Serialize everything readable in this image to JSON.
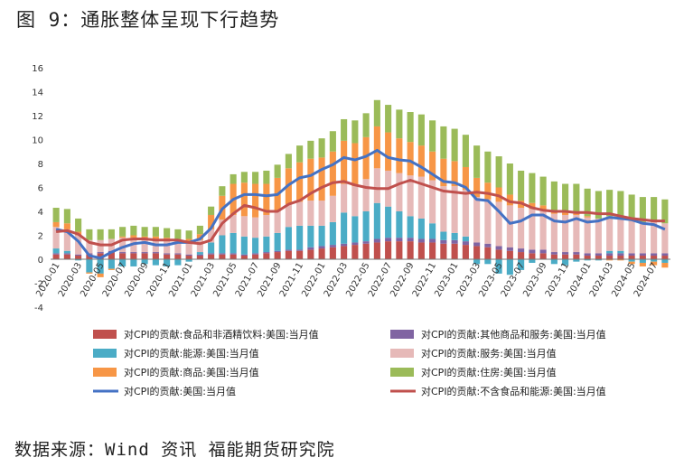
{
  "figure_title": "图 9：通胀整体呈现下行趋势",
  "source": "数据来源：Wind 资讯 福能期货研究院",
  "chart_data": {
    "type": "bar",
    "stacked": true,
    "title": "",
    "xlabel": "",
    "ylabel": "",
    "ylim": [
      -4,
      16
    ],
    "yticks": [
      -4,
      -2,
      0,
      2,
      4,
      6,
      8,
      10,
      12,
      14,
      16
    ],
    "grid": false,
    "legend_position": "bottom",
    "x": [
      "2020-01",
      "2020-02",
      "2020-03",
      "2020-04",
      "2020-05",
      "2020-06",
      "2020-07",
      "2020-08",
      "2020-09",
      "2020-10",
      "2020-11",
      "2020-12",
      "2021-01",
      "2021-02",
      "2021-03",
      "2021-04",
      "2021-05",
      "2021-06",
      "2021-07",
      "2021-08",
      "2021-09",
      "2021-10",
      "2021-11",
      "2021-12",
      "2022-01",
      "2022-02",
      "2022-03",
      "2022-04",
      "2022-05",
      "2022-06",
      "2022-07",
      "2022-08",
      "2022-09",
      "2022-10",
      "2022-11",
      "2022-12",
      "2023-01",
      "2023-02",
      "2023-03",
      "2023-04",
      "2023-05",
      "2023-06",
      "2023-07",
      "2023-08",
      "2023-09",
      "2023-10",
      "2023-11",
      "2023-12",
      "2024-01",
      "2024-02",
      "2024-03",
      "2024-04",
      "2024-05",
      "2024-06",
      "2024-07",
      "2024-08"
    ],
    "x_tick_labels": [
      "2020-01",
      "2020-03",
      "2020-05",
      "2020-07",
      "2020-09",
      "2020-11",
      "2021-01",
      "2021-03",
      "2021-05",
      "2021-07",
      "2021-09",
      "2021-11",
      "2022-01",
      "2022-03",
      "2022-05",
      "2022-07",
      "2022-09",
      "2022-11",
      "2023-01",
      "2023-03",
      "2023-05",
      "2023-07",
      "2023-09",
      "2023-11",
      "2024-01",
      "2024-03",
      "2024-05",
      "2024-07"
    ],
    "bar_series": [
      {
        "name": "对CPI的贡献:食品和非酒精饮料:美国:当月值",
        "color": "#C0504D",
        "values": [
          0.4,
          0.4,
          0.3,
          0.4,
          0.5,
          0.6,
          0.5,
          0.5,
          0.5,
          0.5,
          0.4,
          0.4,
          0.3,
          0.3,
          0.4,
          0.4,
          0.4,
          0.3,
          0.4,
          0.5,
          0.6,
          0.7,
          0.7,
          0.8,
          0.9,
          1.0,
          1.1,
          1.2,
          1.3,
          1.4,
          1.5,
          1.5,
          1.5,
          1.4,
          1.4,
          1.3,
          1.3,
          1.2,
          1.1,
          1.0,
          0.8,
          0.7,
          0.6,
          0.5,
          0.5,
          0.4,
          0.4,
          0.4,
          0.3,
          0.3,
          0.3,
          0.3,
          0.3,
          0.3,
          0.3,
          0.3
        ]
      },
      {
        "name": "对CPI的贡献:其他商品和服务:美国:当月值",
        "color": "#8064A2",
        "values": [
          0.1,
          0.1,
          0.1,
          0.1,
          0.1,
          0.1,
          0.1,
          0.1,
          0.1,
          0.1,
          0.1,
          0.1,
          0.1,
          0.1,
          0.1,
          0.1,
          0.1,
          0.1,
          0.1,
          0.1,
          0.1,
          0.1,
          0.1,
          0.2,
          0.2,
          0.2,
          0.2,
          0.2,
          0.2,
          0.3,
          0.3,
          0.3,
          0.3,
          0.3,
          0.3,
          0.3,
          0.3,
          0.3,
          0.3,
          0.3,
          0.3,
          0.3,
          0.3,
          0.3,
          0.3,
          0.2,
          0.2,
          0.2,
          0.2,
          0.2,
          0.2,
          0.2,
          0.2,
          0.2,
          0.2,
          0.2
        ]
      },
      {
        "name": "对CPI的贡献:能源:美国:当月值",
        "color": "#4BACC6",
        "values": [
          0.4,
          0.2,
          -0.1,
          -1.1,
          -1.2,
          -0.8,
          -0.6,
          -0.6,
          -0.4,
          -0.5,
          -0.6,
          -0.5,
          -0.2,
          0.2,
          0.9,
          1.5,
          1.7,
          1.5,
          1.3,
          1.3,
          1.5,
          1.9,
          2.0,
          1.8,
          1.7,
          1.9,
          2.6,
          2.2,
          2.5,
          3.0,
          2.6,
          2.2,
          1.8,
          1.7,
          1.3,
          0.7,
          0.6,
          0.4,
          -0.4,
          -0.4,
          -1.2,
          -1.3,
          -0.9,
          -0.3,
          -0.0,
          -0.4,
          -0.5,
          -0.2,
          -0.1,
          -0.1,
          0.2,
          0.2,
          -0.2,
          -0.3,
          -0.2,
          -0.3
        ]
      },
      {
        "name": "对CPI的贡献:服务:美国:当月值",
        "color": "#E6B9B8",
        "values": [
          1.8,
          1.8,
          1.6,
          1.1,
          1.0,
          1.0,
          1.2,
          1.2,
          1.1,
          1.0,
          1.0,
          1.0,
          1.0,
          1.0,
          1.1,
          1.3,
          1.5,
          1.7,
          1.7,
          1.8,
          1.8,
          1.9,
          2.0,
          2.1,
          2.1,
          2.2,
          2.4,
          2.5,
          2.7,
          2.9,
          3.0,
          3.2,
          3.4,
          3.5,
          3.6,
          3.8,
          3.9,
          3.9,
          3.8,
          3.7,
          3.7,
          3.5,
          3.4,
          3.4,
          3.3,
          3.2,
          3.1,
          3.1,
          3.0,
          2.9,
          2.9,
          2.8,
          2.7,
          2.6,
          2.6,
          2.5
        ]
      },
      {
        "name": "对CPI的贡献:商品:美国:当月值",
        "color": "#F79646",
        "values": [
          0.4,
          0.5,
          0.3,
          -0.1,
          -0.3,
          -0.1,
          0.1,
          0.2,
          0.2,
          0.3,
          0.3,
          0.2,
          0.3,
          0.5,
          1.2,
          2.0,
          2.6,
          2.8,
          2.8,
          2.6,
          2.8,
          3.0,
          3.3,
          3.5,
          3.6,
          3.7,
          3.6,
          3.6,
          3.5,
          3.5,
          3.2,
          2.9,
          2.8,
          2.6,
          2.4,
          2.3,
          2.1,
          1.9,
          1.6,
          1.4,
          1.2,
          0.9,
          0.6,
          0.5,
          0.4,
          0.3,
          0.2,
          0.2,
          0.1,
          0.0,
          -0.1,
          -0.1,
          -0.2,
          -0.3,
          -0.3,
          -0.4
        ]
      },
      {
        "name": "对CPI的贡献:住房:美国:当月值",
        "color": "#9BBB59",
        "values": [
          1.2,
          1.2,
          1.1,
          0.9,
          0.9,
          0.8,
          0.8,
          0.8,
          0.8,
          0.8,
          0.8,
          0.8,
          0.7,
          0.7,
          0.7,
          0.8,
          0.8,
          0.9,
          1.0,
          1.1,
          1.1,
          1.2,
          1.4,
          1.5,
          1.6,
          1.7,
          1.8,
          1.9,
          2.0,
          2.2,
          2.3,
          2.4,
          2.5,
          2.6,
          2.6,
          2.7,
          2.7,
          2.7,
          2.7,
          2.6,
          2.6,
          2.6,
          2.5,
          2.5,
          2.4,
          2.4,
          2.4,
          2.4,
          2.3,
          2.3,
          2.2,
          2.2,
          2.2,
          2.1,
          2.1,
          2.0
        ]
      }
    ],
    "line_series": [
      {
        "name": "对CPI的贡献:美国:当月值",
        "color": "#4472C4",
        "values": [
          2.5,
          2.3,
          1.5,
          0.3,
          0.1,
          0.6,
          1.0,
          1.3,
          1.4,
          1.2,
          1.2,
          1.4,
          1.4,
          1.7,
          2.6,
          4.2,
          5.0,
          5.4,
          5.4,
          5.3,
          5.4,
          6.2,
          6.8,
          7.0,
          7.5,
          7.9,
          8.5,
          8.3,
          8.6,
          9.1,
          8.5,
          8.3,
          8.2,
          7.7,
          7.1,
          6.5,
          6.4,
          6.0,
          5.0,
          4.9,
          4.0,
          3.0,
          3.2,
          3.7,
          3.7,
          3.2,
          3.1,
          3.4,
          3.1,
          3.2,
          3.5,
          3.4,
          3.3,
          3.0,
          2.9,
          2.5
        ]
      },
      {
        "name": "对CPI的贡献:不含食品和能源:美国:当月值",
        "color": "#C0504D",
        "values": [
          2.3,
          2.4,
          2.1,
          1.4,
          1.2,
          1.2,
          1.6,
          1.7,
          1.7,
          1.6,
          1.6,
          1.6,
          1.4,
          1.3,
          1.6,
          3.0,
          3.8,
          4.5,
          4.3,
          4.0,
          4.0,
          4.6,
          4.9,
          5.5,
          6.0,
          6.4,
          6.5,
          6.2,
          6.0,
          5.9,
          5.9,
          6.3,
          6.6,
          6.3,
          6.0,
          5.7,
          5.6,
          5.5,
          5.6,
          5.5,
          5.3,
          4.8,
          4.7,
          4.3,
          4.1,
          4.0,
          4.0,
          3.9,
          3.9,
          3.8,
          3.8,
          3.6,
          3.4,
          3.3,
          3.2,
          3.2
        ]
      }
    ]
  }
}
